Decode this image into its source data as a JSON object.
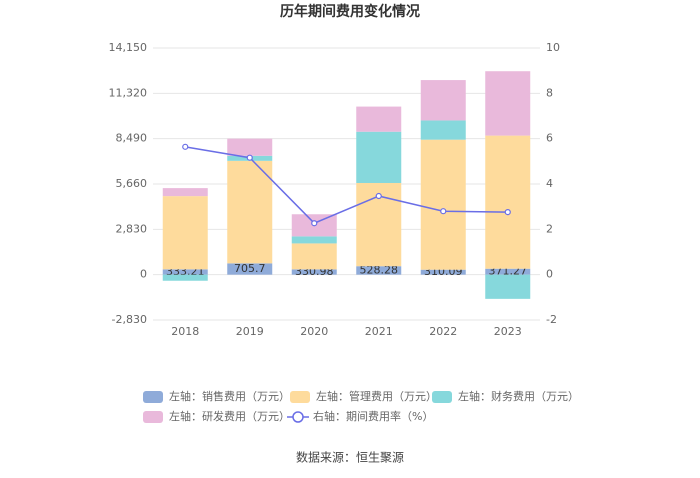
{
  "chart_data": {
    "type": "bar",
    "title": "历年期间费用变化情况",
    "categories": [
      "2018",
      "2019",
      "2020",
      "2021",
      "2022",
      "2023"
    ],
    "series": [
      {
        "name": "左轴：销售费用（万元）",
        "color": "#8fabd9",
        "values": [
          333.21,
          705.7,
          330.98,
          528.28,
          310.09,
          371.27
        ]
      },
      {
        "name": "左轴：管理费用（万元）",
        "color": "#fedb9c",
        "values": [
          4570,
          6400,
          1620,
          5195,
          8117,
          8310
        ]
      },
      {
        "name": "左轴：财务费用（万元）",
        "color": "#86d8dc",
        "values": [
          -380,
          315,
          440,
          3200,
          1200,
          -1510
        ]
      },
      {
        "name": "左轴：研发费用（万元）",
        "color": "#e9b9db",
        "values": [
          500,
          1070,
          1380,
          1570,
          2520,
          4020
        ]
      },
      {
        "name": "右轴：期间费用率（%）",
        "color": "#6a6ee6",
        "type": "line",
        "axis": "y2",
        "values": [
          5.64,
          5.16,
          2.27,
          3.47,
          2.8,
          2.76
        ]
      }
    ],
    "ylim": [
      -2830,
      14150
    ],
    "yticks": [
      {
        "value": -2830,
        "label": "-2,830"
      },
      0,
      {
        "value": 2830,
        "label": "2,830"
      },
      {
        "value": 5660,
        "label": "5,660"
      },
      {
        "value": 8490,
        "label": "8,490"
      },
      {
        "value": 11320,
        "label": "11,320"
      },
      {
        "value": 14150,
        "label": "14,150"
      }
    ],
    "y2lim": [
      -2,
      10
    ],
    "y2ticks": [
      -2,
      0,
      2,
      4,
      6,
      8,
      10
    ],
    "grid": true,
    "source": "数据来源：恒生聚源"
  }
}
